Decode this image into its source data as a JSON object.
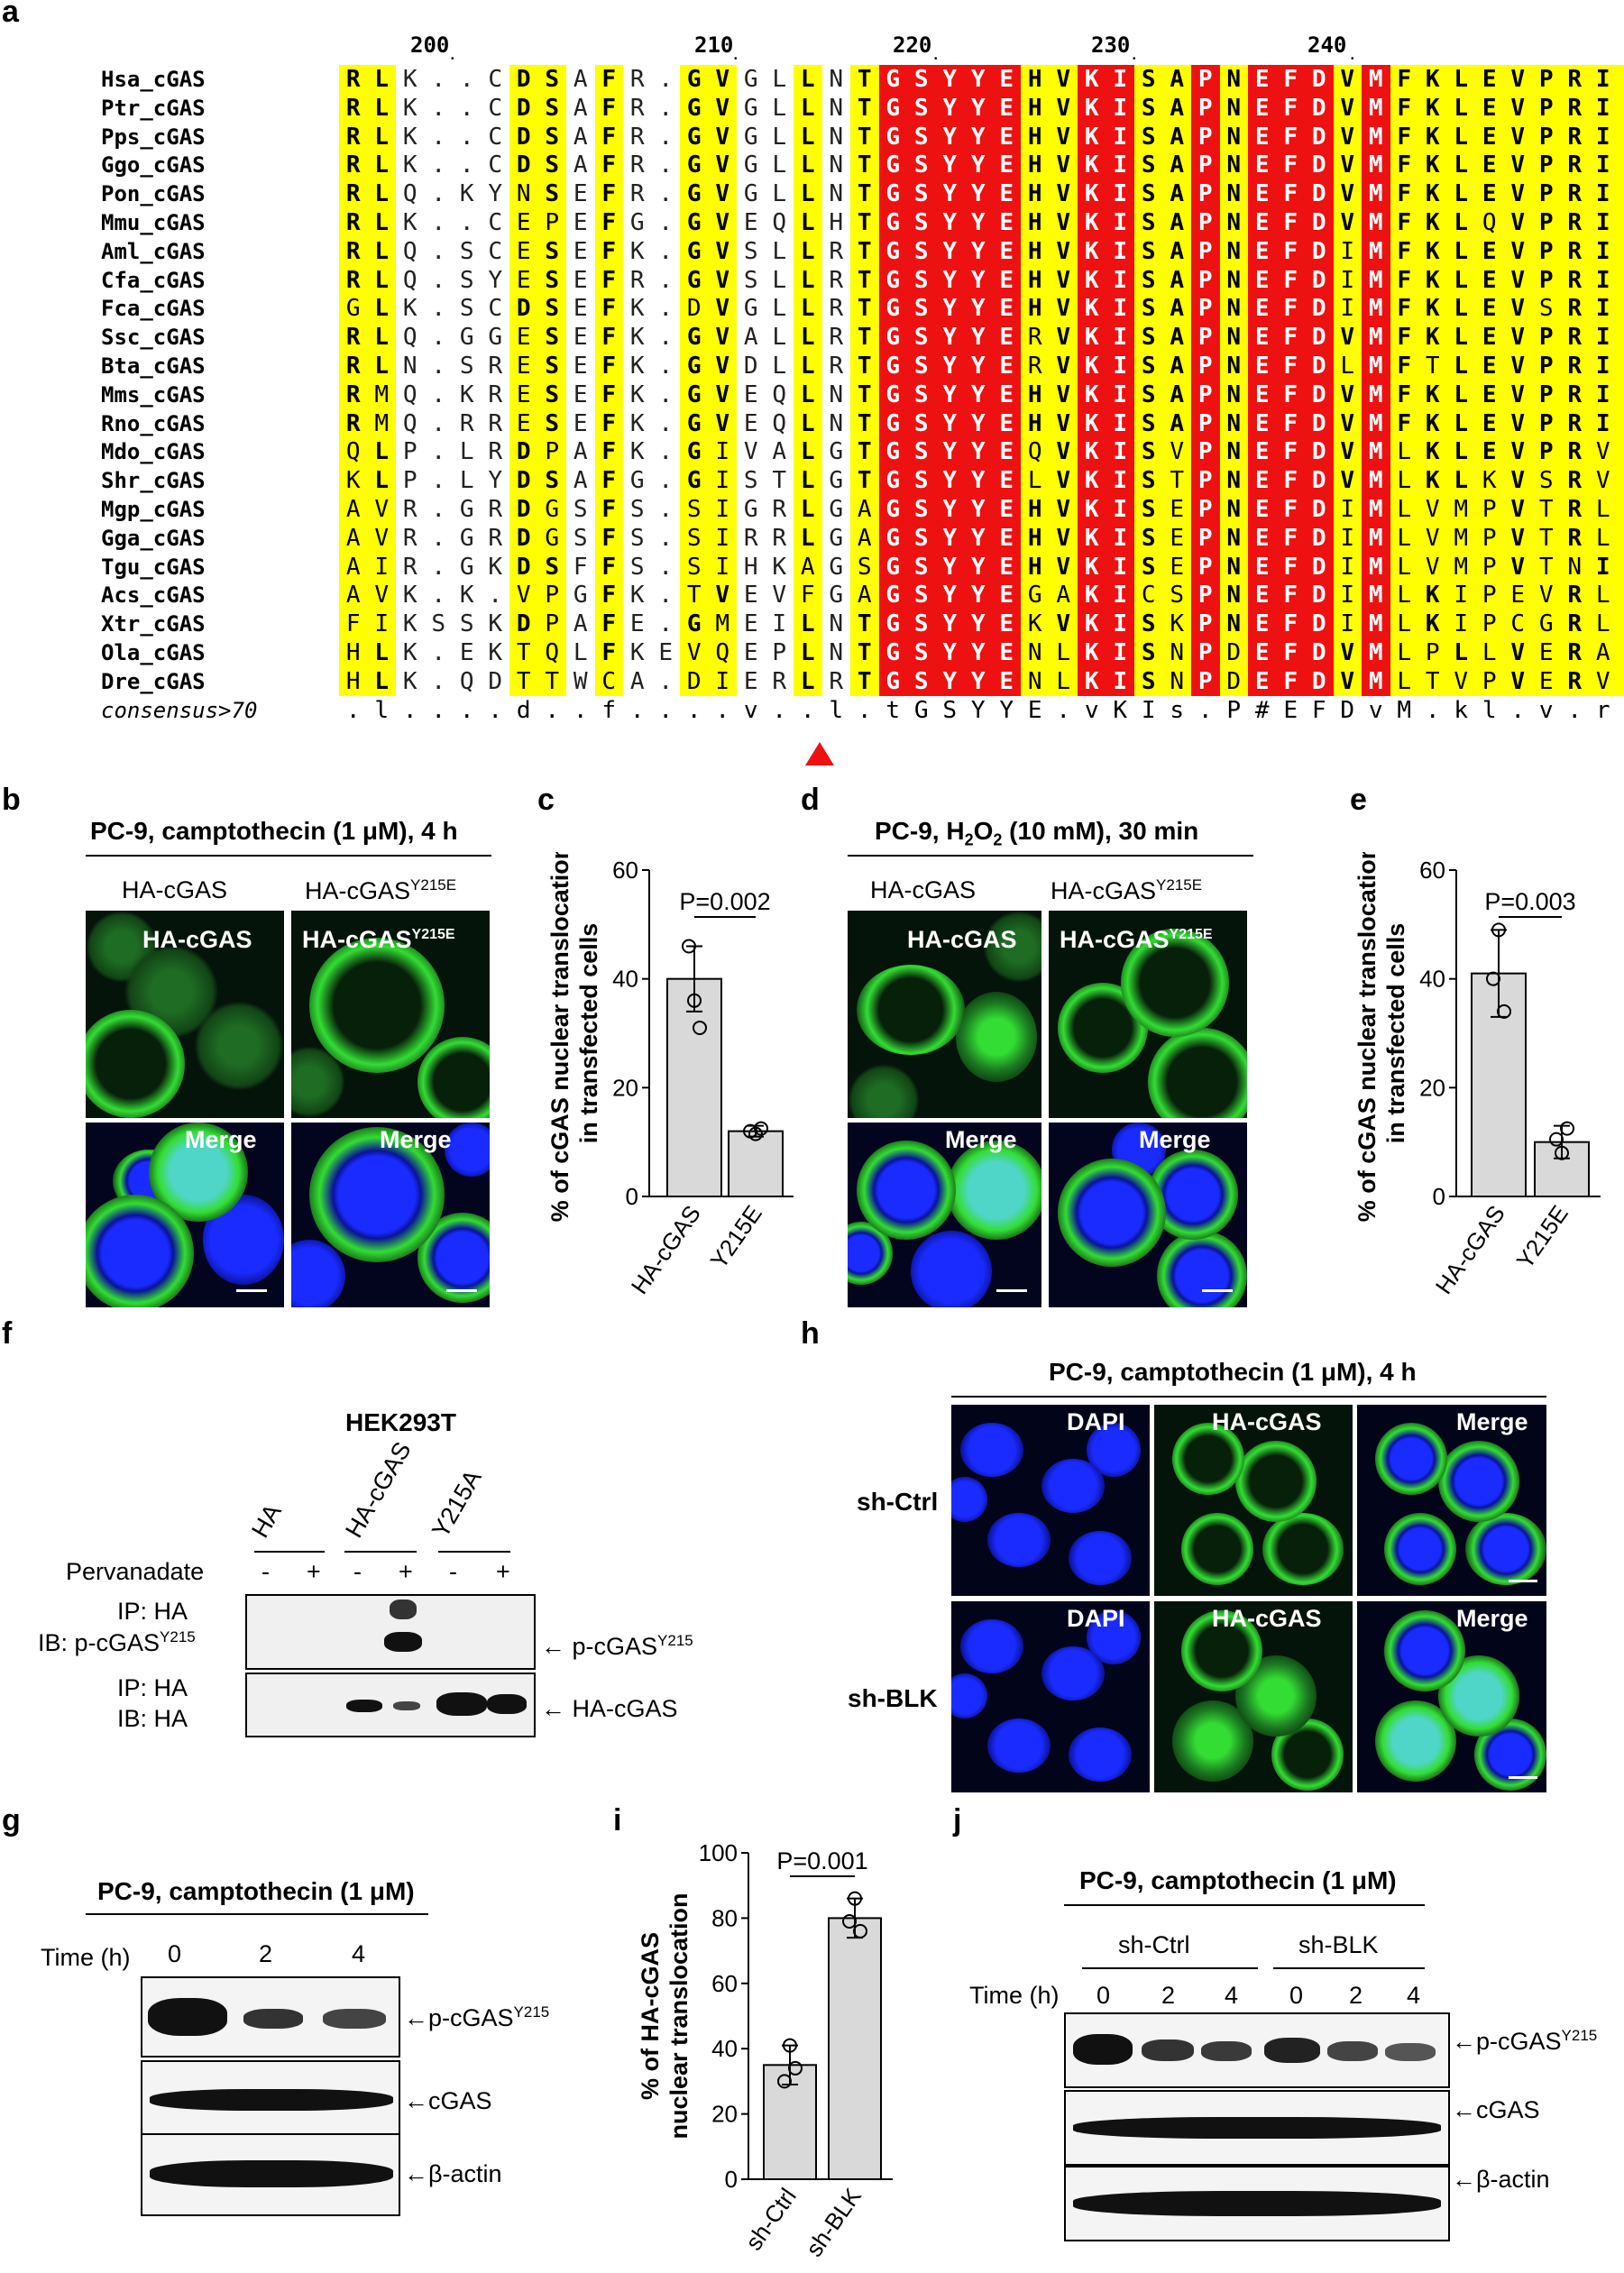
{
  "panel_labels": [
    "a",
    "b",
    "c",
    "d",
    "e",
    "f",
    "g",
    "h",
    "i",
    "j"
  ],
  "alignment": {
    "ruler": [
      "200",
      "210",
      "220",
      "230",
      "240"
    ],
    "species": [
      "Hsa_cGAS",
      "Ptr_cGAS",
      "Pps_cGAS",
      "Ggo_cGAS",
      "Pon_cGAS",
      "Mmu_cGAS",
      "Aml_cGAS",
      "Cfa_cGAS",
      "Fca_cGAS",
      "Ssc_cGAS",
      "Bta_cGAS",
      "Mms_cGAS",
      "Rno_cGAS",
      "Mdo_cGAS",
      "Shr_cGAS",
      "Mgp_cGAS",
      "Gga_cGAS",
      "Tgu_cGAS",
      "Acs_cGAS",
      "Xtr_cGAS",
      "Ola_cGAS",
      "Dre_cGAS"
    ],
    "sequences": [
      "RLK..CDSAFR.GVGLLNTGSYYEHVKISAPNEFDVMFKLEVPRIQLEEYS...NTRAYY",
      "RLK..CDSAFR.GVGLLNTGSYYEHVKISAPNEFDVMFKLEVPRIQLEEYS...NTRAYY",
      "RLK..CDSAFR.GVGLLNTGSYYEHVKISAPNEFDVMFKLEVPRIQLEEYS...NTRAYY",
      "RLK..CDSAFR.GVGLLNTGSYYEHVKISAPNEFDVMFKLEVPRIQLEEYS...NTRAYY",
      "RLQ.KYNSEFR.GVGLLNTGSYYEHVKISAPNEFDVMFKLEVPRIQLEEYS...NTGAYY",
      "RLK..CEPEFG.GVEQLHTGSYYEHVKISAPNEFDVMFKLQVPRIQLEEYS...DTGAYY",
      "RLQ.SCESEFK.GVSLLRTGSYYEHVKISAPNEFDIMFKLEVPRIQLEEYC...NSGAYY",
      "RLQ.SYESEFR.GVSLLRTGSYYEHVKISAPNEFDIMFKLEVPRIQLEEYC...KTGAYY",
      "GLK.SCDSEFK.DVGLLRTGSYYEHVKISAPNEFDIMFKLEVSRIQLEEYR...NSGAYY",
      "RLQ.GGESEFK.GVALLRTGSYYERVKISAPNEFDVMFKLEVPRIQLEEYC...NSGAHY",
      "RLN.SRESEFK.GVDLLRTGSYYERVKISAPNEFDLMFTLEVPRIQLEEYC...NSAHY",
      "RMQ.KRESEFK.GVEQLNTGSYYEHVKISAPNEFDVMFKLEVPRIELQEYY...ETGAFY",
      "RMQ.RRESEFK.GVEQLNTGSYYEHVKISAPNEFDVMFKLEVPRIELEEYY...ETGAFY",
      "QLP.LRDPAFK.GIVALGTGSYYEQVKISVPNEFDVMLKLEVPRVELEEYD...ESGAFY",
      "KLP.LYDSAFG.GISTLGTGSYYELVKISTPNEFDVMLKLKVSRVELKEYE...DSGAFY",
      "AVR.GRDGSFS.SIGRLGAGSYYEHVKISEPNEFDIMLVMPVTRLQLDECD...DTGAFY",
      "AVR.GRDGSFS.SIRRLGAGSYYEHVKISEPNEFDIMLVMPVTRLQLDESD...DTGAYY",
      "AIR.GKDSFFS.SIHKAGSGSYYEHVKISEPNEFDIMLVMPVTNIQLDESD...DTGAYY",
      "AVK.K.VPGFK.TVEVFGAGSYYEGAKICSPNEFDIMLKIPEVRLELESCEVVSSSGAFH",
      "FIKSSKDPAFE.GMEILNTGSYYEKVKISKPNEFDIMLKIPCGRLRISESD...ASGSFY",
      "HLK.EKTQLFKEVQEPLNTGSYYENLKISNPDEFDVMLPLLVERAKPEPFK...EDGAFY",
      "HLK.QDTTWCA.DIERLRTGSYYENLKISNPDEFDVMLTVPVERVDIQNFD...DTGAFY"
    ],
    "consensus_label": "consensus>70",
    "consensus": ".l....d..f....v..l.tGSYYE.vKIs.P#EFDvM.kl.v.riqleey....n.gayy"
  },
  "panel_b": {
    "title": "PC-9, camptothecin (1 μM), 4 h",
    "col_labels": [
      "HA-cGAS",
      "HA-cGAS"
    ],
    "col_sup": [
      "",
      "Y215E"
    ],
    "img_labels_top": [
      "HA-cGAS",
      "HA-cGAS"
    ],
    "img_labels_bottom": [
      "Merge",
      "Merge"
    ]
  },
  "panel_d": {
    "title_pre": "PC-9, H",
    "title_sub": "2",
    "title_mid": "O",
    "title_sub2": "2",
    "title_post": " (10 mM), 30 min",
    "col_labels": [
      "HA-cGAS",
      "HA-cGAS"
    ],
    "col_sup": [
      "",
      "Y215E"
    ],
    "img_labels_top": [
      "HA-cGAS",
      "HA-cGAS"
    ],
    "img_labels_bottom": [
      "Merge",
      "Merge"
    ]
  },
  "chart_data": [
    {
      "panel": "c",
      "type": "bar",
      "categories": [
        "HA-cGAS",
        "Y215E"
      ],
      "values": [
        40,
        12
      ],
      "errors": [
        6,
        1
      ],
      "points": [
        [
          36,
          46,
          31
        ],
        [
          11.5,
          12,
          12.5
        ]
      ],
      "ylabel": "% of cGAS nuclear translocation in transfected cells",
      "ylim": [
        0,
        60
      ],
      "yticks": [
        "0",
        "20",
        "40",
        "60"
      ],
      "annotation": "P=0.002"
    },
    {
      "panel": "e",
      "type": "bar",
      "categories": [
        "HA-cGAS",
        "Y215E"
      ],
      "values": [
        41,
        10
      ],
      "errors": [
        8,
        3
      ],
      "points": [
        [
          49,
          40,
          34
        ],
        [
          8,
          10.5,
          12.5
        ]
      ],
      "ylabel": "% of cGAS nuclear translocation in transfected cells",
      "ylim": [
        0,
        60
      ],
      "yticks": [
        "0",
        "20",
        "40",
        "60"
      ],
      "annotation": "P=0.003"
    },
    {
      "panel": "i",
      "type": "bar",
      "categories": [
        "sh-Ctrl",
        "sh-BLK"
      ],
      "values": [
        35,
        80
      ],
      "errors": [
        6,
        6
      ],
      "points": [
        [
          41,
          30,
          34
        ],
        [
          86,
          79,
          76
        ]
      ],
      "ylabel": "% of HA-cGAS nuclear translocation",
      "ylim": [
        0,
        100
      ],
      "yticks": [
        "0",
        "20",
        "40",
        "60",
        "80",
        "100"
      ],
      "annotation": "P=0.001"
    }
  ],
  "panel_f": {
    "cell_line": "HEK293T",
    "group_labels": [
      "HA",
      "HA-cGAS",
      "Y215A"
    ],
    "pervanadate_label": "Pervanadate",
    "pervanadate_signs": [
      "-",
      "+",
      "-",
      "+",
      "-",
      "+"
    ],
    "row1_ip": "IP: HA",
    "row1_ib": "IB: p-cGAS",
    "row1_ib_sup": "Y215",
    "row2_ip": "IP: HA",
    "row2_ib": "IB: HA",
    "arrow1": "p-cGAS",
    "arrow1_sup": "Y215",
    "arrow2": "HA-cGAS"
  },
  "panel_g": {
    "title": "PC-9, camptothecin (1 μM)",
    "time_label": "Time (h)",
    "times": [
      "0",
      "2",
      "4"
    ],
    "arrows": [
      "p-cGAS",
      "cGAS",
      "β-actin"
    ],
    "arrow_sup": "Y215"
  },
  "panel_h": {
    "title": "PC-9, camptothecin (1 μM), 4 h",
    "row_labels": [
      "sh-Ctrl",
      "sh-BLK"
    ],
    "img_labels": [
      "DAPI",
      "HA-cGAS",
      "Merge",
      "DAPI",
      "HA-cGAS",
      "Merge"
    ]
  },
  "panel_j": {
    "title": "PC-9, camptothecin (1 μM)",
    "groups": [
      "sh-Ctrl",
      "sh-BLK"
    ],
    "time_label": "Time (h)",
    "times": [
      "0",
      "2",
      "4",
      "0",
      "2",
      "4"
    ],
    "arrows": [
      "p-cGAS",
      "cGAS",
      "β-actin"
    ],
    "arrow_sup": "Y215"
  },
  "colors": {
    "identical_bg": "#ee1111",
    "similar_bg": "#ffff00",
    "bar_fill": "#d9d9d9",
    "dapi": "#1a2bff",
    "gfp": "#33dd33",
    "triangle": "#ee1111"
  }
}
